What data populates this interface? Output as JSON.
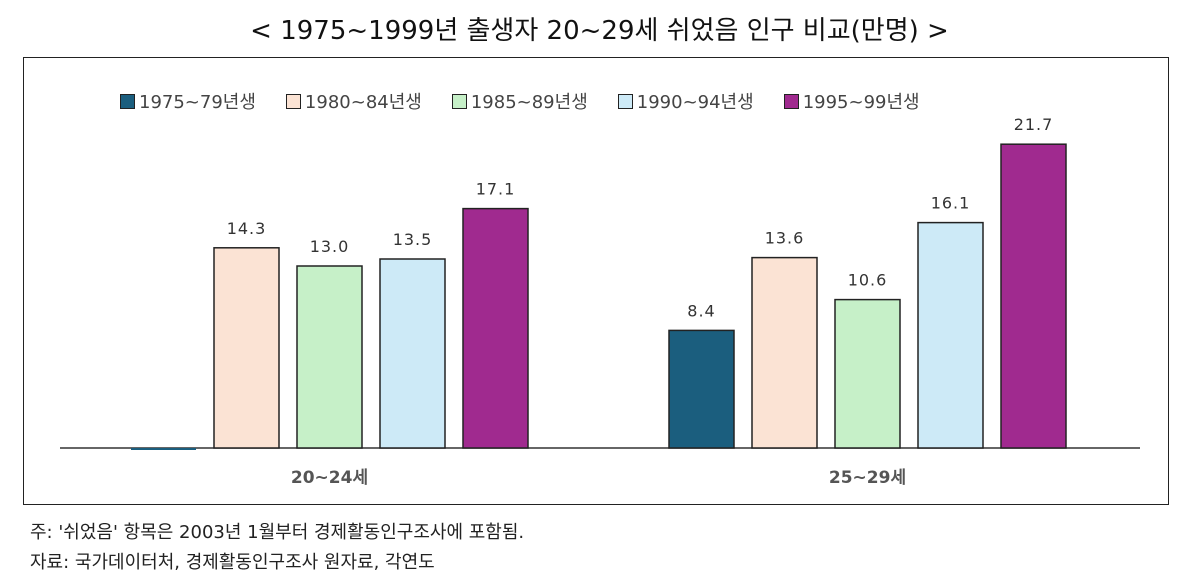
{
  "chart_data": {
    "type": "bar",
    "title": "< 1975~1999년 출생자 20~29세 쉬었음 인구 비교(만명) >",
    "categories": [
      "20~24세",
      "25~29세"
    ],
    "series": [
      {
        "name": "1975~79년생",
        "color": "#1b5e7e",
        "values": [
          0,
          8.4
        ]
      },
      {
        "name": "1980~84년생",
        "color": "#fbe3d4",
        "values": [
          14.3,
          13.6
        ]
      },
      {
        "name": "1985~89년생",
        "color": "#c6f0c8",
        "values": [
          13.0,
          10.6
        ]
      },
      {
        "name": "1990~94년생",
        "color": "#cdeaf7",
        "values": [
          13.5,
          16.1
        ]
      },
      {
        "name": "1995~99년생",
        "color": "#a02a8f",
        "values": [
          17.1,
          21.7
        ]
      }
    ],
    "ylim": [
      0,
      22.5
    ],
    "legend": "top",
    "grid": false
  },
  "notes": [
    "주: '쉬었음' 항목은 2003년 1월부터 경제활동인구조사에 포함됨.",
    "자료: 국가데이터처, 경제활동인구조사 원자료, 각연도"
  ]
}
